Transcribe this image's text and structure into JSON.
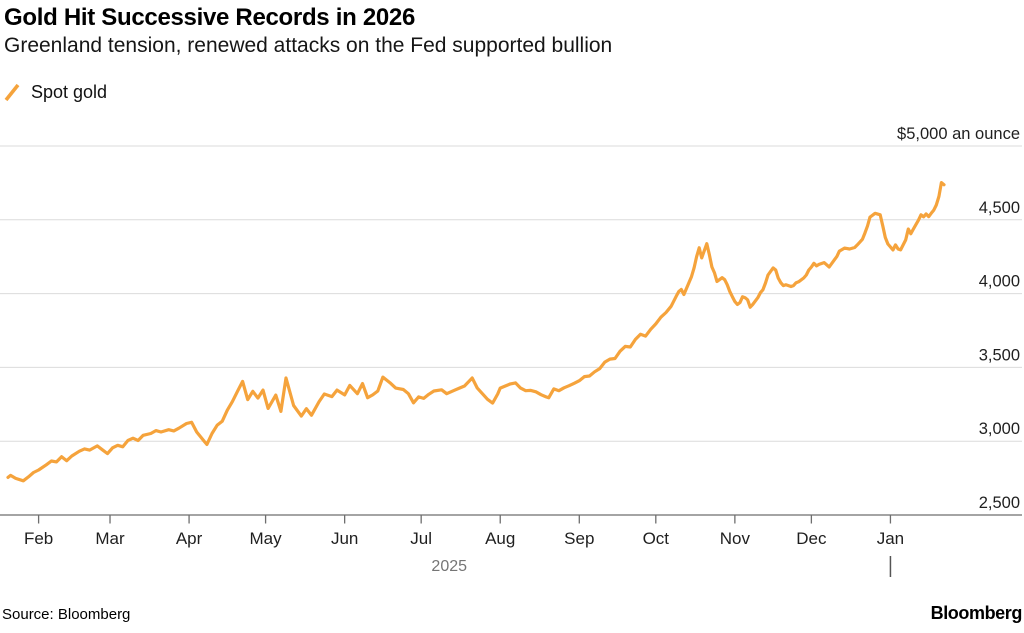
{
  "header": {
    "title": "Gold Hit Successive Records in 2026",
    "subtitle": "Greenland tension, renewed attacks on the Fed supported bullion"
  },
  "legend": {
    "label": "Spot gold",
    "marker_color": "#F5A33C"
  },
  "footer": {
    "source": "Source: Bloomberg",
    "brand": "Bloomberg"
  },
  "colors": {
    "line": "#F5A33C",
    "grid": "#DBDBDB",
    "axis": "#6E6E6E",
    "year_divider": "#555555",
    "muted_text": "#757575"
  },
  "chart_data": {
    "type": "line",
    "title": "Gold Hit Successive Records in 2026",
    "subtitle": "Greenland tension, renewed attacks on the Fed supported bullion",
    "series_name": "Spot gold",
    "unit_label": "$5,000 an ounce",
    "grid": true,
    "legend_position": "top-left",
    "y_axis": {
      "min": 2500,
      "max": 5000,
      "ticks": [
        {
          "value": 2500,
          "label": "2,500"
        },
        {
          "value": 3000,
          "label": "3,000"
        },
        {
          "value": 3500,
          "label": "3,500"
        },
        {
          "value": 4000,
          "label": "4,000"
        },
        {
          "value": 4500,
          "label": "4,500"
        },
        {
          "value": 5000,
          "label": "$5,000 an ounce"
        }
      ]
    },
    "x_axis": {
      "start": "2025-01-20",
      "end": "2026-01-22",
      "year_label": "2025",
      "year_divider_date": "2026-01-01",
      "month_ticks": [
        {
          "label": "Feb",
          "date": "2025-02-01"
        },
        {
          "label": "Mar",
          "date": "2025-03-01"
        },
        {
          "label": "Apr",
          "date": "2025-04-01"
        },
        {
          "label": "May",
          "date": "2025-05-01"
        },
        {
          "label": "Jun",
          "date": "2025-06-01"
        },
        {
          "label": "Jul",
          "date": "2025-07-01"
        },
        {
          "label": "Aug",
          "date": "2025-08-01"
        },
        {
          "label": "Sep",
          "date": "2025-09-01"
        },
        {
          "label": "Oct",
          "date": "2025-10-01"
        },
        {
          "label": "Nov",
          "date": "2025-11-01"
        },
        {
          "label": "Dec",
          "date": "2025-12-01"
        },
        {
          "label": "Jan",
          "date": "2026-01-01"
        }
      ]
    },
    "points": [
      [
        "2025-01-20",
        2755
      ],
      [
        "2025-01-21",
        2768
      ],
      [
        "2025-01-23",
        2748
      ],
      [
        "2025-01-26",
        2732
      ],
      [
        "2025-01-28",
        2758
      ],
      [
        "2025-01-30",
        2788
      ],
      [
        "2025-02-01",
        2805
      ],
      [
        "2025-02-04",
        2840
      ],
      [
        "2025-02-06",
        2866
      ],
      [
        "2025-02-08",
        2860
      ],
      [
        "2025-02-10",
        2895
      ],
      [
        "2025-02-12",
        2868
      ],
      [
        "2025-02-14",
        2900
      ],
      [
        "2025-02-17",
        2932
      ],
      [
        "2025-02-19",
        2948
      ],
      [
        "2025-02-21",
        2940
      ],
      [
        "2025-02-24",
        2968
      ],
      [
        "2025-02-26",
        2942
      ],
      [
        "2025-02-28",
        2916
      ],
      [
        "2025-03-02",
        2955
      ],
      [
        "2025-03-04",
        2972
      ],
      [
        "2025-03-06",
        2962
      ],
      [
        "2025-03-08",
        3005
      ],
      [
        "2025-03-10",
        3020
      ],
      [
        "2025-03-12",
        3005
      ],
      [
        "2025-03-14",
        3040
      ],
      [
        "2025-03-17",
        3052
      ],
      [
        "2025-03-19",
        3072
      ],
      [
        "2025-03-21",
        3062
      ],
      [
        "2025-03-24",
        3078
      ],
      [
        "2025-03-26",
        3070
      ],
      [
        "2025-03-28",
        3088
      ],
      [
        "2025-03-31",
        3120
      ],
      [
        "2025-04-02",
        3128
      ],
      [
        "2025-04-04",
        3062
      ],
      [
        "2025-04-07",
        2998
      ],
      [
        "2025-04-08",
        2978
      ],
      [
        "2025-04-10",
        3052
      ],
      [
        "2025-04-12",
        3108
      ],
      [
        "2025-04-14",
        3135
      ],
      [
        "2025-04-16",
        3210
      ],
      [
        "2025-04-18",
        3268
      ],
      [
        "2025-04-20",
        3338
      ],
      [
        "2025-04-22",
        3405
      ],
      [
        "2025-04-24",
        3282
      ],
      [
        "2025-04-26",
        3338
      ],
      [
        "2025-04-28",
        3292
      ],
      [
        "2025-04-30",
        3346
      ],
      [
        "2025-05-02",
        3222
      ],
      [
        "2025-05-05",
        3312
      ],
      [
        "2025-05-07",
        3202
      ],
      [
        "2025-05-09",
        3428
      ],
      [
        "2025-05-12",
        3242
      ],
      [
        "2025-05-15",
        3170
      ],
      [
        "2025-05-17",
        3220
      ],
      [
        "2025-05-19",
        3176
      ],
      [
        "2025-05-22",
        3268
      ],
      [
        "2025-05-24",
        3320
      ],
      [
        "2025-05-27",
        3302
      ],
      [
        "2025-05-29",
        3346
      ],
      [
        "2025-06-01",
        3314
      ],
      [
        "2025-06-03",
        3378
      ],
      [
        "2025-06-06",
        3322
      ],
      [
        "2025-06-08",
        3390
      ],
      [
        "2025-06-10",
        3295
      ],
      [
        "2025-06-12",
        3314
      ],
      [
        "2025-06-14",
        3340
      ],
      [
        "2025-06-16",
        3434
      ],
      [
        "2025-06-19",
        3392
      ],
      [
        "2025-06-21",
        3360
      ],
      [
        "2025-06-24",
        3350
      ],
      [
        "2025-06-26",
        3322
      ],
      [
        "2025-06-28",
        3260
      ],
      [
        "2025-06-30",
        3300
      ],
      [
        "2025-07-02",
        3290
      ],
      [
        "2025-07-04",
        3318
      ],
      [
        "2025-07-06",
        3340
      ],
      [
        "2025-07-09",
        3348
      ],
      [
        "2025-07-11",
        3322
      ],
      [
        "2025-07-14",
        3345
      ],
      [
        "2025-07-16",
        3360
      ],
      [
        "2025-07-18",
        3374
      ],
      [
        "2025-07-21",
        3428
      ],
      [
        "2025-07-23",
        3360
      ],
      [
        "2025-07-25",
        3322
      ],
      [
        "2025-07-27",
        3284
      ],
      [
        "2025-07-29",
        3258
      ],
      [
        "2025-07-31",
        3320
      ],
      [
        "2025-08-01",
        3360
      ],
      [
        "2025-08-03",
        3374
      ],
      [
        "2025-08-05",
        3388
      ],
      [
        "2025-08-07",
        3395
      ],
      [
        "2025-08-09",
        3360
      ],
      [
        "2025-08-11",
        3342
      ],
      [
        "2025-08-13",
        3344
      ],
      [
        "2025-08-15",
        3335
      ],
      [
        "2025-08-17",
        3315
      ],
      [
        "2025-08-19",
        3300
      ],
      [
        "2025-08-20",
        3294
      ],
      [
        "2025-08-22",
        3354
      ],
      [
        "2025-08-24",
        3342
      ],
      [
        "2025-08-26",
        3362
      ],
      [
        "2025-08-28",
        3376
      ],
      [
        "2025-08-30",
        3392
      ],
      [
        "2025-09-01",
        3410
      ],
      [
        "2025-09-03",
        3438
      ],
      [
        "2025-09-05",
        3442
      ],
      [
        "2025-09-07",
        3470
      ],
      [
        "2025-09-09",
        3492
      ],
      [
        "2025-09-11",
        3536
      ],
      [
        "2025-09-13",
        3556
      ],
      [
        "2025-09-15",
        3560
      ],
      [
        "2025-09-17",
        3610
      ],
      [
        "2025-09-19",
        3642
      ],
      [
        "2025-09-21",
        3638
      ],
      [
        "2025-09-23",
        3690
      ],
      [
        "2025-09-25",
        3724
      ],
      [
        "2025-09-27",
        3712
      ],
      [
        "2025-09-29",
        3758
      ],
      [
        "2025-10-01",
        3795
      ],
      [
        "2025-10-03",
        3840
      ],
      [
        "2025-10-05",
        3872
      ],
      [
        "2025-10-07",
        3914
      ],
      [
        "2025-10-09",
        3982
      ],
      [
        "2025-10-10",
        4014
      ],
      [
        "2025-10-11",
        4028
      ],
      [
        "2025-10-12",
        3994
      ],
      [
        "2025-10-14",
        4075
      ],
      [
        "2025-10-15",
        4115
      ],
      [
        "2025-10-16",
        4175
      ],
      [
        "2025-10-17",
        4250
      ],
      [
        "2025-10-18",
        4310
      ],
      [
        "2025-10-19",
        4242
      ],
      [
        "2025-10-21",
        4338
      ],
      [
        "2025-10-22",
        4262
      ],
      [
        "2025-10-23",
        4180
      ],
      [
        "2025-10-24",
        4140
      ],
      [
        "2025-10-25",
        4082
      ],
      [
        "2025-10-26",
        4095
      ],
      [
        "2025-10-27",
        4108
      ],
      [
        "2025-10-28",
        4094
      ],
      [
        "2025-10-29",
        4060
      ],
      [
        "2025-10-30",
        4014
      ],
      [
        "2025-10-31",
        3980
      ],
      [
        "2025-11-01",
        3946
      ],
      [
        "2025-11-02",
        3926
      ],
      [
        "2025-11-03",
        3940
      ],
      [
        "2025-11-04",
        3978
      ],
      [
        "2025-11-05",
        3972
      ],
      [
        "2025-11-06",
        3958
      ],
      [
        "2025-11-07",
        3908
      ],
      [
        "2025-11-08",
        3926
      ],
      [
        "2025-11-10",
        3972
      ],
      [
        "2025-11-11",
        4006
      ],
      [
        "2025-11-12",
        4026
      ],
      [
        "2025-11-13",
        4072
      ],
      [
        "2025-11-14",
        4126
      ],
      [
        "2025-11-16",
        4174
      ],
      [
        "2025-11-17",
        4160
      ],
      [
        "2025-11-18",
        4106
      ],
      [
        "2025-11-19",
        4074
      ],
      [
        "2025-11-20",
        4054
      ],
      [
        "2025-11-21",
        4060
      ],
      [
        "2025-11-23",
        4048
      ],
      [
        "2025-11-24",
        4054
      ],
      [
        "2025-11-25",
        4074
      ],
      [
        "2025-11-26",
        4080
      ],
      [
        "2025-11-28",
        4106
      ],
      [
        "2025-11-29",
        4126
      ],
      [
        "2025-11-30",
        4160
      ],
      [
        "2025-12-01",
        4180
      ],
      [
        "2025-12-02",
        4205
      ],
      [
        "2025-12-03",
        4188
      ],
      [
        "2025-12-04",
        4198
      ],
      [
        "2025-12-06",
        4210
      ],
      [
        "2025-12-08",
        4180
      ],
      [
        "2025-12-10",
        4228
      ],
      [
        "2025-12-11",
        4252
      ],
      [
        "2025-12-12",
        4288
      ],
      [
        "2025-12-14",
        4308
      ],
      [
        "2025-12-16",
        4302
      ],
      [
        "2025-12-18",
        4312
      ],
      [
        "2025-12-19",
        4330
      ],
      [
        "2025-12-21",
        4368
      ],
      [
        "2025-12-22",
        4410
      ],
      [
        "2025-12-23",
        4458
      ],
      [
        "2025-12-24",
        4518
      ],
      [
        "2025-12-26",
        4544
      ],
      [
        "2025-12-28",
        4534
      ],
      [
        "2025-12-29",
        4458
      ],
      [
        "2025-12-30",
        4380
      ],
      [
        "2025-12-31",
        4336
      ],
      [
        "2026-01-02",
        4296
      ],
      [
        "2026-01-03",
        4330
      ],
      [
        "2026-01-04",
        4302
      ],
      [
        "2026-01-05",
        4296
      ],
      [
        "2026-01-07",
        4364
      ],
      [
        "2026-01-08",
        4438
      ],
      [
        "2026-01-09",
        4406
      ],
      [
        "2026-01-10",
        4438
      ],
      [
        "2026-01-12",
        4498
      ],
      [
        "2026-01-13",
        4534
      ],
      [
        "2026-01-14",
        4520
      ],
      [
        "2026-01-15",
        4540
      ],
      [
        "2026-01-16",
        4522
      ],
      [
        "2026-01-17",
        4544
      ],
      [
        "2026-01-18",
        4566
      ],
      [
        "2026-01-19",
        4600
      ],
      [
        "2026-01-20",
        4658
      ],
      [
        "2026-01-21",
        4752
      ],
      [
        "2026-01-22",
        4738
      ]
    ]
  }
}
